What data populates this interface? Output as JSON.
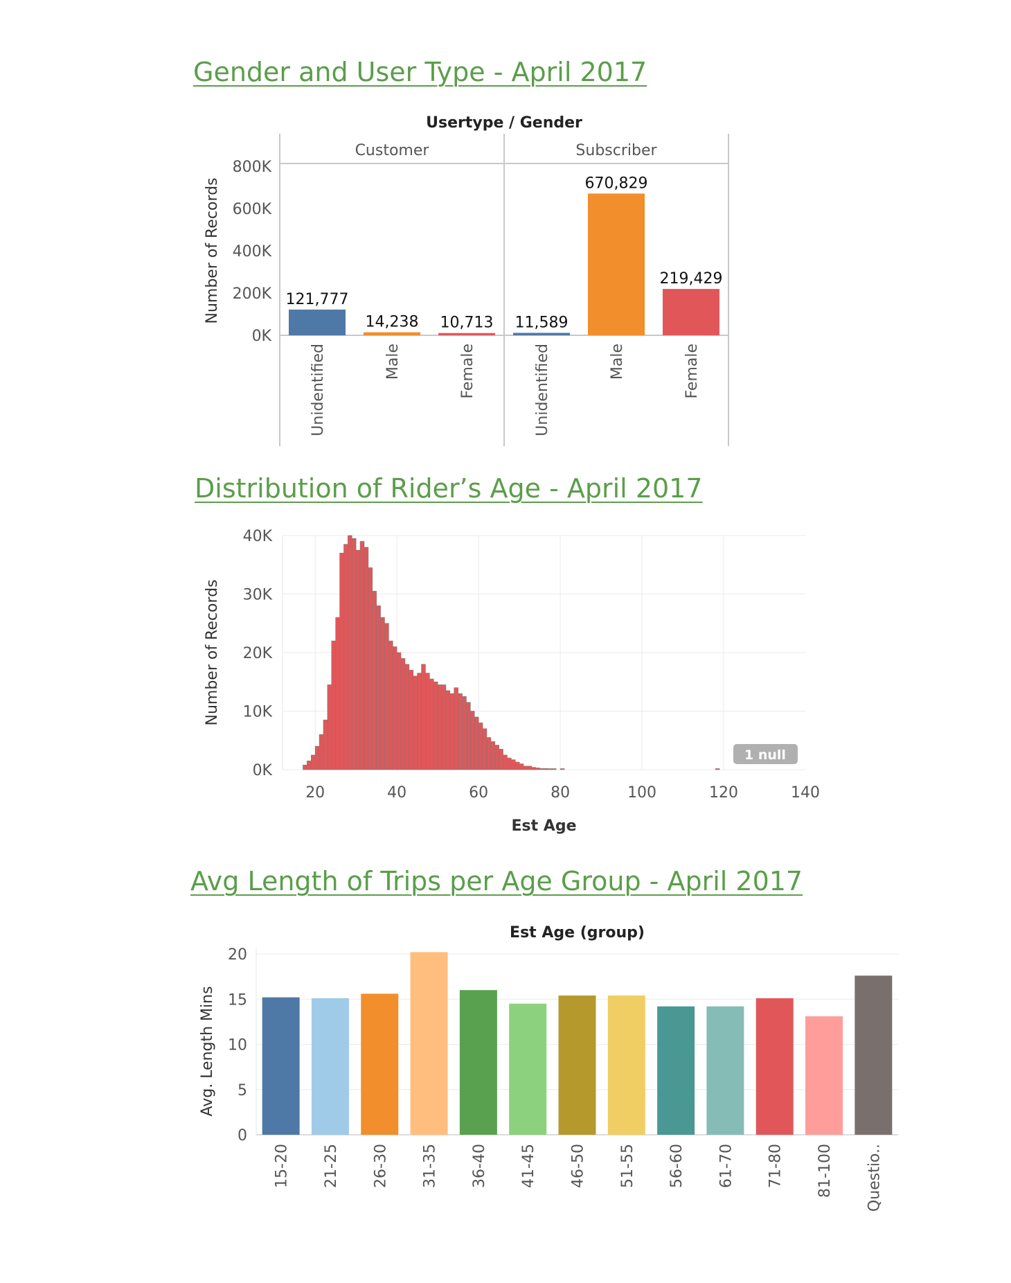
{
  "titles": {
    "gender": "Gender and User Type - April 2017",
    "age": "Distribution of Rider’s Age - April 2017",
    "trips": "Avg Length of Trips per Age Group - April 2017"
  },
  "chart_data": [
    {
      "type": "bar",
      "title": "Gender and User Type - April 2017",
      "header": "Usertype / Gender",
      "ylabel": "Number of Records",
      "ylim": [
        0,
        800000
      ],
      "yticks": [
        0,
        200000,
        400000,
        600000,
        800000
      ],
      "ytick_labels": [
        "0K",
        "200K",
        "400K",
        "600K",
        "800K"
      ],
      "groups": [
        {
          "name": "Customer",
          "categories": [
            "Unidentified",
            "Male",
            "Female"
          ],
          "values": [
            121777,
            14238,
            10713
          ],
          "labels": [
            "121,777",
            "14,238",
            "10,713"
          ]
        },
        {
          "name": "Subscriber",
          "categories": [
            "Unidentified",
            "Male",
            "Female"
          ],
          "values": [
            11589,
            670829,
            219429
          ],
          "labels": [
            "11,589",
            "670,829",
            "219,429"
          ]
        }
      ],
      "colors": {
        "Unidentified": "#4e79a7",
        "Male": "#f28e2b",
        "Female": "#e15759"
      },
      "grid": false
    },
    {
      "type": "bar",
      "title": "Distribution of Rider’s Age - April 2017",
      "xlabel": "Est Age",
      "ylabel": "Number of Records",
      "xlim": [
        12,
        140
      ],
      "xticks": [
        20,
        40,
        60,
        80,
        100,
        120,
        140
      ],
      "ylim": [
        0,
        40000
      ],
      "yticks": [
        0,
        10000,
        20000,
        30000,
        40000
      ],
      "ytick_labels": [
        "0K",
        "10K",
        "20K",
        "30K",
        "40K"
      ],
      "bin_width": 1,
      "x": [
        17,
        18,
        19,
        20,
        21,
        22,
        23,
        24,
        25,
        26,
        27,
        28,
        29,
        30,
        31,
        32,
        33,
        34,
        35,
        36,
        37,
        38,
        39,
        40,
        41,
        42,
        43,
        44,
        45,
        46,
        47,
        48,
        49,
        50,
        51,
        52,
        53,
        54,
        55,
        56,
        57,
        58,
        59,
        60,
        61,
        62,
        63,
        64,
        65,
        66,
        67,
        68,
        69,
        70,
        71,
        72,
        73,
        74,
        75,
        76,
        77,
        78,
        80,
        118
      ],
      "values": [
        800,
        1500,
        2500,
        4000,
        6000,
        8500,
        14500,
        22000,
        26000,
        37000,
        38500,
        40000,
        39500,
        37500,
        39000,
        38000,
        34500,
        30500,
        28000,
        26000,
        25000,
        22000,
        21000,
        20000,
        19000,
        18000,
        17000,
        16000,
        16500,
        18000,
        16500,
        15500,
        15000,
        14500,
        14500,
        13500,
        13000,
        14000,
        13000,
        12500,
        11500,
        10000,
        9000,
        8000,
        7000,
        5500,
        4800,
        4200,
        3500,
        2500,
        2000,
        1700,
        1300,
        1000,
        600,
        600,
        400,
        300,
        200,
        200,
        150,
        100,
        100,
        100
      ],
      "color": "#e15759",
      "null_badge": "1 null",
      "grid": true
    },
    {
      "type": "bar",
      "title": "Avg Length of Trips per Age Group - April 2017",
      "header": "Est Age (group)",
      "ylabel": "Avg. Length Mins",
      "ylim": [
        0,
        20
      ],
      "yticks": [
        0,
        5,
        10,
        15,
        20
      ],
      "categories": [
        "15-20",
        "21-25",
        "26-30",
        "31-35",
        "36-40",
        "41-45",
        "46-50",
        "51-55",
        "56-60",
        "61-70",
        "71-80",
        "81-100",
        "Questio.."
      ],
      "values": [
        15.2,
        15.1,
        15.6,
        20.2,
        16.0,
        14.5,
        15.4,
        15.4,
        14.2,
        14.2,
        15.1,
        13.1,
        17.6
      ],
      "colors": [
        "#4e79a7",
        "#a0cbe8",
        "#f28e2b",
        "#ffbe7d",
        "#59a14f",
        "#8cd17d",
        "#b6992d",
        "#f1ce63",
        "#499894",
        "#86bcb6",
        "#e15759",
        "#ff9d9a",
        "#79706e"
      ],
      "grid": true
    }
  ]
}
